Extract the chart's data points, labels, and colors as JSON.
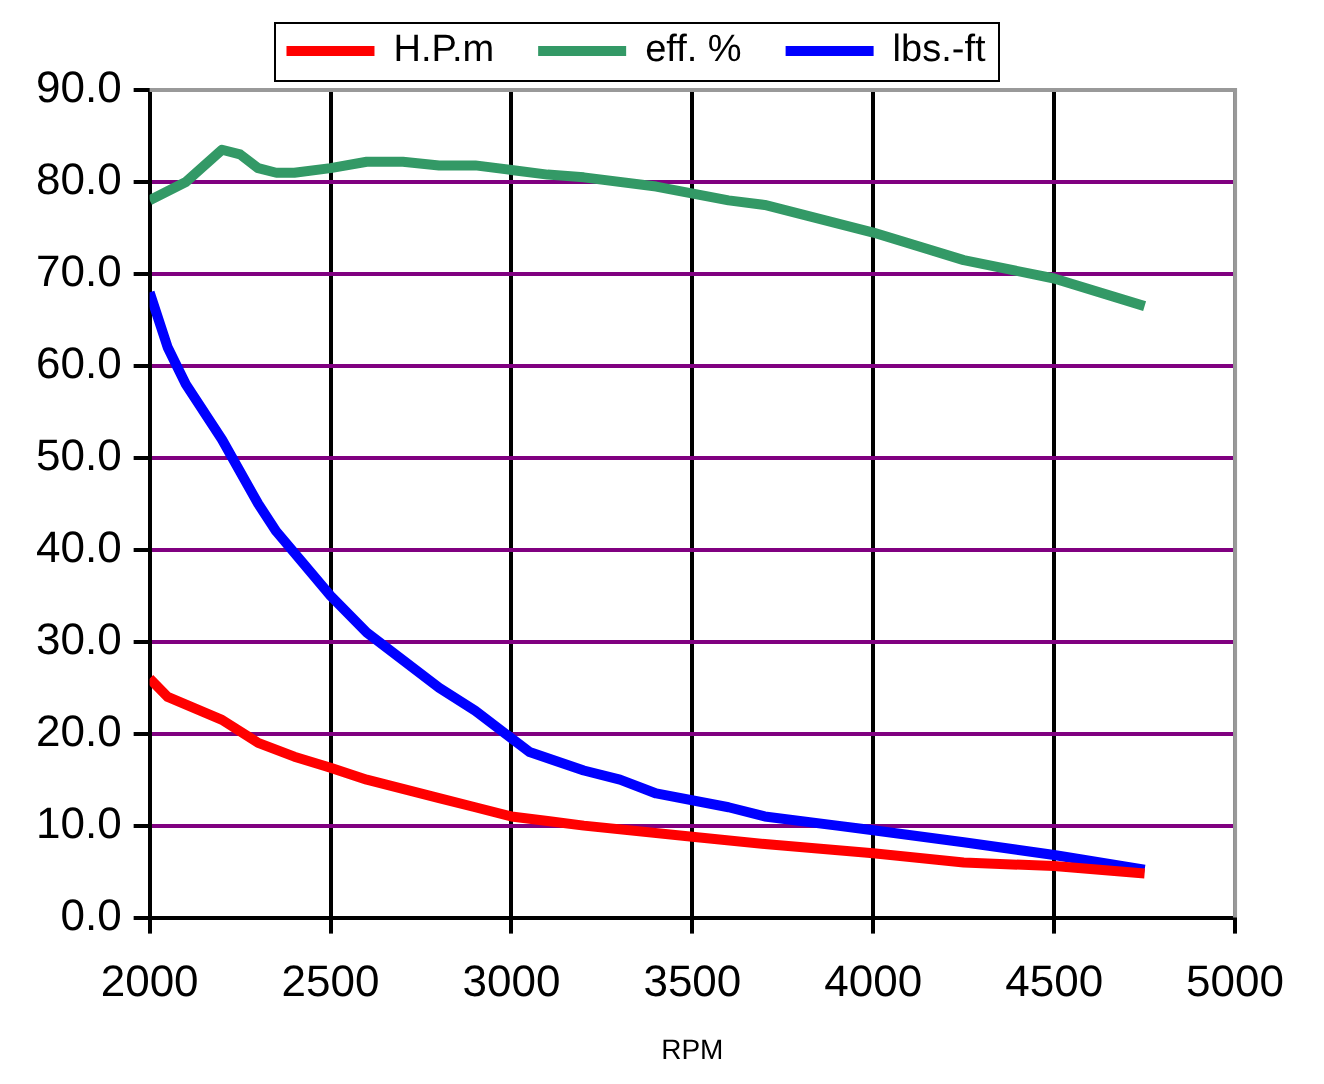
{
  "chart_data": {
    "type": "line",
    "xlabel": "RPM",
    "legend": "top",
    "grid": true,
    "marker": "none",
    "line_style": "solid",
    "xlim": [
      2000,
      5000
    ],
    "xticks": [
      2000,
      2500,
      3000,
      3500,
      4000,
      4500,
      5000
    ],
    "ylim": [
      0,
      90
    ],
    "yticks": [
      {
        "value": 0,
        "label": "0.0"
      },
      {
        "value": 10,
        "label": "10.0"
      },
      {
        "value": 20,
        "label": "20.0"
      },
      {
        "value": 30,
        "label": "30.0"
      },
      {
        "value": 40,
        "label": "40.0"
      },
      {
        "value": 50,
        "label": "50.0"
      },
      {
        "value": 60,
        "label": "60.0"
      },
      {
        "value": 70,
        "label": "70.0"
      },
      {
        "value": 80,
        "label": "80.0"
      },
      {
        "value": 90,
        "label": "90.0"
      }
    ],
    "series": [
      {
        "name": "H.P.m",
        "color": "#ff0000",
        "x": [
          2000,
          2050,
          2200,
          2300,
          2400,
          2500,
          2600,
          2800,
          2900,
          3000,
          3100,
          3200,
          3500,
          3700,
          4000,
          4250,
          4500,
          4750
        ],
        "values": [
          26,
          24,
          21.5,
          19,
          17.5,
          16.3,
          15,
          13,
          12,
          11,
          10.5,
          10,
          8.8,
          8,
          7,
          6,
          5.6,
          4.8
        ]
      },
      {
        "name": "eff. %",
        "color": "#339966",
        "x": [
          2000,
          2100,
          2200,
          2250,
          2300,
          2350,
          2400,
          2500,
          2600,
          2700,
          2800,
          2900,
          3000,
          3100,
          3200,
          3400,
          3600,
          3700,
          4000,
          4250,
          4500,
          4750
        ],
        "values": [
          78,
          80,
          83.5,
          83,
          81.5,
          81,
          81,
          81.5,
          82.2,
          82.2,
          81.8,
          81.8,
          81.3,
          80.8,
          80.5,
          79.5,
          78,
          77.5,
          74.5,
          71.5,
          69.5,
          66.5
        ]
      },
      {
        "name": "lbs.-ft",
        "color": "#0000ff",
        "x": [
          2000,
          2050,
          2100,
          2200,
          2300,
          2350,
          2500,
          2600,
          2800,
          2900,
          3000,
          3050,
          3200,
          3300,
          3400,
          3600,
          3700,
          3900,
          4000,
          4250,
          4500,
          4750
        ],
        "values": [
          68,
          62,
          58,
          52,
          45,
          42,
          35,
          31,
          25,
          22.5,
          19.5,
          18,
          16,
          15,
          13.5,
          12,
          11,
          10,
          9.5,
          8.2,
          6.8,
          5.2
        ]
      }
    ]
  }
}
